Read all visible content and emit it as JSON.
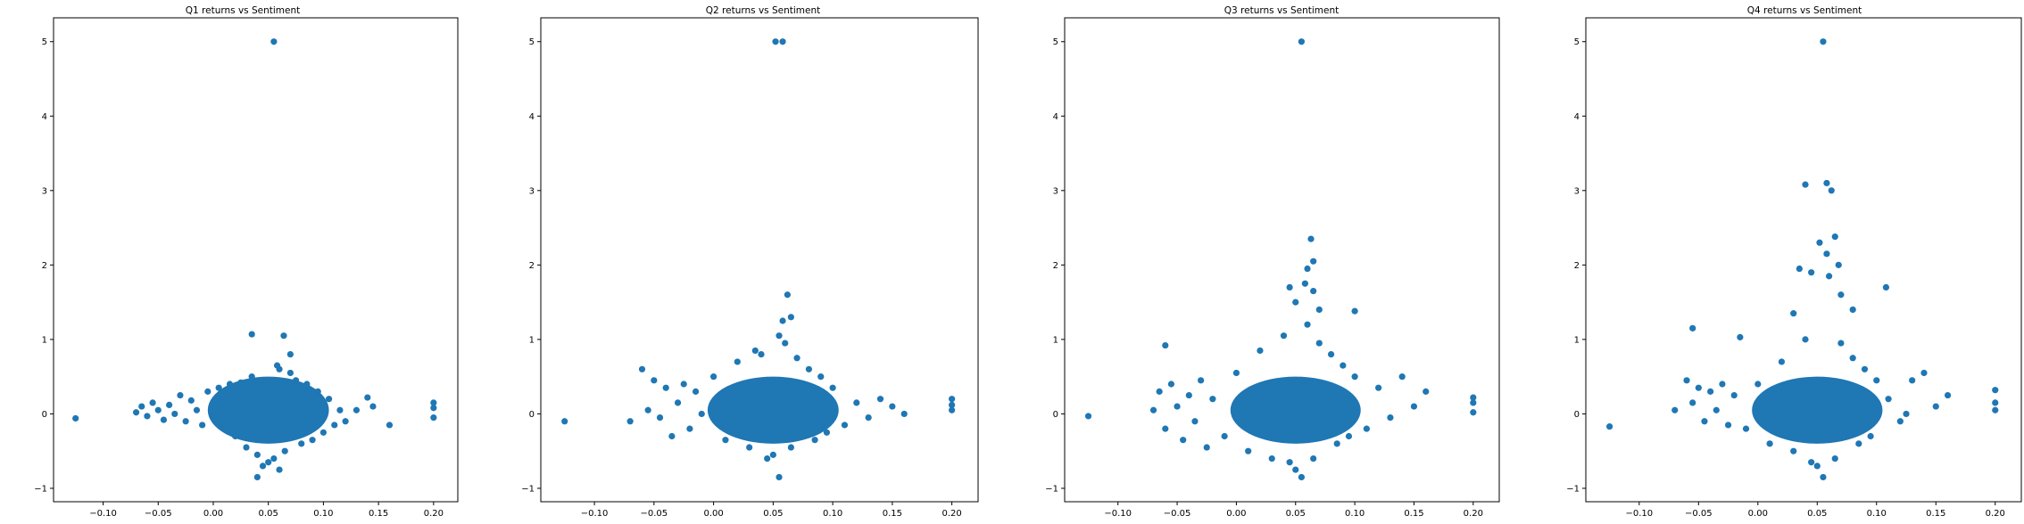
{
  "figure": {
    "background": "#ffffff",
    "point_color": "#1f77b4"
  },
  "chart_data": [
    {
      "type": "scatter",
      "title": "Q1 returns vs Sentiment",
      "xlabel": "",
      "ylabel": "",
      "xlim": [
        -0.145,
        0.222
      ],
      "ylim": [
        -1.18,
        5.32
      ],
      "xticks": [
        -0.1,
        -0.05,
        0.0,
        0.05,
        0.1,
        0.15,
        0.2
      ],
      "xtick_labels": [
        "−0.10",
        "−0.05",
        "0.00",
        "0.05",
        "0.10",
        "0.15",
        "0.20"
      ],
      "yticks": [
        -1,
        0,
        1,
        2,
        3,
        4,
        5
      ],
      "ytick_labels": [
        "−1",
        "0",
        "1",
        "2",
        "3",
        "4",
        "5"
      ],
      "grid": false,
      "series": [
        {
          "values": [
            [
              0.055,
              5.0
            ],
            [
              0.035,
              1.07
            ],
            [
              0.064,
              1.05
            ],
            [
              0.07,
              0.8
            ],
            [
              0.058,
              0.65
            ],
            [
              -0.125,
              -0.06
            ],
            [
              0.2,
              0.15
            ],
            [
              0.2,
              0.08
            ],
            [
              0.2,
              -0.05
            ],
            [
              0.16,
              -0.15
            ],
            [
              0.145,
              0.1
            ],
            [
              0.14,
              0.22
            ],
            [
              0.13,
              0.05
            ],
            [
              0.12,
              -0.1
            ],
            [
              0.115,
              0.05
            ],
            [
              -0.07,
              0.02
            ],
            [
              -0.065,
              0.1
            ],
            [
              -0.06,
              -0.03
            ],
            [
              -0.055,
              0.15
            ],
            [
              -0.05,
              0.05
            ],
            [
              -0.045,
              -0.08
            ],
            [
              -0.04,
              0.12
            ],
            [
              -0.035,
              0.0
            ],
            [
              -0.03,
              0.25
            ],
            [
              -0.025,
              -0.1
            ],
            [
              -0.02,
              0.18
            ],
            [
              -0.015,
              0.05
            ],
            [
              -0.01,
              -0.15
            ],
            [
              -0.005,
              0.3
            ],
            [
              0.0,
              -0.05
            ],
            [
              0.005,
              0.35
            ],
            [
              0.01,
              -0.2
            ],
            [
              0.015,
              0.4
            ],
            [
              0.02,
              -0.3
            ],
            [
              0.025,
              0.42
            ],
            [
              0.03,
              -0.45
            ],
            [
              0.035,
              0.5
            ],
            [
              0.04,
              -0.55
            ],
            [
              0.045,
              -0.7
            ],
            [
              0.05,
              -0.65
            ],
            [
              0.055,
              -0.6
            ],
            [
              0.06,
              -0.75
            ],
            [
              0.065,
              -0.5
            ],
            [
              0.07,
              0.55
            ],
            [
              0.075,
              0.45
            ],
            [
              0.08,
              -0.4
            ],
            [
              0.085,
              0.4
            ],
            [
              0.09,
              -0.35
            ],
            [
              0.095,
              0.3
            ],
            [
              0.1,
              -0.25
            ],
            [
              0.105,
              0.2
            ],
            [
              0.11,
              -0.15
            ],
            [
              0.04,
              -0.85
            ],
            [
              0.06,
              0.6
            ],
            [
              0.03,
              0.38
            ]
          ]
        }
      ]
    },
    {
      "type": "scatter",
      "title": "Q2 returns vs Sentiment",
      "xlabel": "",
      "ylabel": "",
      "xlim": [
        -0.145,
        0.222
      ],
      "ylim": [
        -1.18,
        5.32
      ],
      "xticks": [
        -0.1,
        -0.05,
        0.0,
        0.05,
        0.1,
        0.15,
        0.2
      ],
      "xtick_labels": [
        "−0.10",
        "−0.05",
        "0.00",
        "0.05",
        "0.10",
        "0.15",
        "0.20"
      ],
      "yticks": [
        -1,
        0,
        1,
        2,
        3,
        4,
        5
      ],
      "ytick_labels": [
        "−1",
        "0",
        "1",
        "2",
        "3",
        "4",
        "5"
      ],
      "grid": false,
      "series": [
        {
          "values": [
            [
              0.052,
              5.0
            ],
            [
              0.058,
              5.0
            ],
            [
              0.062,
              1.6
            ],
            [
              0.065,
              1.3
            ],
            [
              0.058,
              1.25
            ],
            [
              0.055,
              1.05
            ],
            [
              0.035,
              0.85
            ],
            [
              0.06,
              0.95
            ],
            [
              -0.125,
              -0.1
            ],
            [
              0.2,
              0.2
            ],
            [
              0.2,
              0.12
            ],
            [
              0.2,
              0.05
            ],
            [
              0.16,
              0.0
            ],
            [
              0.15,
              0.1
            ],
            [
              0.14,
              0.2
            ],
            [
              0.13,
              -0.05
            ],
            [
              0.12,
              0.15
            ],
            [
              0.11,
              -0.15
            ],
            [
              -0.07,
              -0.1
            ],
            [
              -0.06,
              0.6
            ],
            [
              -0.055,
              0.05
            ],
            [
              -0.05,
              0.45
            ],
            [
              -0.045,
              -0.05
            ],
            [
              -0.04,
              0.35
            ],
            [
              -0.035,
              -0.3
            ],
            [
              -0.03,
              0.15
            ],
            [
              -0.025,
              0.4
            ],
            [
              -0.02,
              -0.2
            ],
            [
              -0.015,
              0.3
            ],
            [
              -0.01,
              0.0
            ],
            [
              0.0,
              0.5
            ],
            [
              0.01,
              -0.35
            ],
            [
              0.02,
              0.7
            ],
            [
              0.03,
              -0.45
            ],
            [
              0.04,
              0.8
            ],
            [
              0.045,
              -0.6
            ],
            [
              0.05,
              -0.55
            ],
            [
              0.055,
              -0.85
            ],
            [
              0.065,
              -0.45
            ],
            [
              0.07,
              0.75
            ],
            [
              0.08,
              0.6
            ],
            [
              0.085,
              -0.35
            ],
            [
              0.09,
              0.5
            ],
            [
              0.095,
              -0.25
            ],
            [
              0.1,
              0.35
            ]
          ]
        }
      ]
    },
    {
      "type": "scatter",
      "title": "Q3 returns vs Sentiment",
      "xlabel": "",
      "ylabel": "",
      "xlim": [
        -0.145,
        0.222
      ],
      "ylim": [
        -1.18,
        5.32
      ],
      "xticks": [
        -0.1,
        -0.05,
        0.0,
        0.05,
        0.1,
        0.15,
        0.2
      ],
      "xtick_labels": [
        "−0.10",
        "−0.05",
        "0.00",
        "0.05",
        "0.10",
        "0.15",
        "0.20"
      ],
      "yticks": [
        -1,
        0,
        1,
        2,
        3,
        4,
        5
      ],
      "ytick_labels": [
        "−1",
        "0",
        "1",
        "2",
        "3",
        "4",
        "5"
      ],
      "grid": false,
      "series": [
        {
          "values": [
            [
              0.055,
              5.0
            ],
            [
              0.063,
              2.35
            ],
            [
              0.065,
              2.05
            ],
            [
              0.06,
              1.95
            ],
            [
              0.058,
              1.75
            ],
            [
              0.045,
              1.7
            ],
            [
              0.065,
              1.65
            ],
            [
              0.05,
              1.5
            ],
            [
              0.07,
              1.4
            ],
            [
              0.1,
              1.38
            ],
            [
              0.06,
              1.2
            ],
            [
              -0.06,
              0.92
            ],
            [
              -0.125,
              -0.03
            ],
            [
              0.2,
              0.22
            ],
            [
              0.2,
              0.15
            ],
            [
              0.2,
              0.02
            ],
            [
              0.16,
              0.3
            ],
            [
              0.15,
              0.1
            ],
            [
              0.14,
              0.5
            ],
            [
              0.13,
              -0.05
            ],
            [
              0.12,
              0.35
            ],
            [
              0.11,
              -0.2
            ],
            [
              -0.07,
              0.05
            ],
            [
              -0.065,
              0.3
            ],
            [
              -0.06,
              -0.2
            ],
            [
              -0.055,
              0.4
            ],
            [
              -0.05,
              0.1
            ],
            [
              -0.045,
              -0.35
            ],
            [
              -0.04,
              0.25
            ],
            [
              -0.035,
              -0.1
            ],
            [
              -0.03,
              0.45
            ],
            [
              -0.025,
              -0.45
            ],
            [
              -0.02,
              0.2
            ],
            [
              -0.01,
              -0.3
            ],
            [
              0.0,
              0.55
            ],
            [
              0.01,
              -0.5
            ],
            [
              0.02,
              0.85
            ],
            [
              0.03,
              -0.6
            ],
            [
              0.04,
              1.05
            ],
            [
              0.045,
              -0.65
            ],
            [
              0.05,
              -0.75
            ],
            [
              0.055,
              -0.85
            ],
            [
              0.065,
              -0.6
            ],
            [
              0.07,
              0.95
            ],
            [
              0.08,
              0.8
            ],
            [
              0.085,
              -0.4
            ],
            [
              0.09,
              0.65
            ],
            [
              0.095,
              -0.3
            ],
            [
              0.1,
              0.5
            ]
          ]
        }
      ]
    },
    {
      "type": "scatter",
      "title": "Q4 returns vs Sentiment",
      "xlabel": "",
      "ylabel": "",
      "xlim": [
        -0.145,
        0.222
      ],
      "ylim": [
        -1.18,
        5.32
      ],
      "xticks": [
        -0.1,
        -0.05,
        0.0,
        0.05,
        0.1,
        0.15,
        0.2
      ],
      "xtick_labels": [
        "−0.10",
        "−0.05",
        "0.00",
        "0.05",
        "0.10",
        "0.15",
        "0.20"
      ],
      "yticks": [
        -1,
        0,
        1,
        2,
        3,
        4,
        5
      ],
      "ytick_labels": [
        "−1",
        "0",
        "1",
        "2",
        "3",
        "4",
        "5"
      ],
      "grid": false,
      "series": [
        {
          "values": [
            [
              0.055,
              5.0
            ],
            [
              0.04,
              3.08
            ],
            [
              0.058,
              3.1
            ],
            [
              0.062,
              3.0
            ],
            [
              0.065,
              2.38
            ],
            [
              0.052,
              2.3
            ],
            [
              0.058,
              2.15
            ],
            [
              0.068,
              2.0
            ],
            [
              0.035,
              1.95
            ],
            [
              0.045,
              1.9
            ],
            [
              0.06,
              1.85
            ],
            [
              0.108,
              1.7
            ],
            [
              0.07,
              1.6
            ],
            [
              0.03,
              1.35
            ],
            [
              0.08,
              1.4
            ],
            [
              -0.055,
              1.15
            ],
            [
              -0.015,
              1.03
            ],
            [
              -0.125,
              -0.17
            ],
            [
              0.2,
              0.32
            ],
            [
              0.2,
              0.15
            ],
            [
              0.2,
              0.05
            ],
            [
              0.16,
              0.25
            ],
            [
              0.15,
              0.1
            ],
            [
              0.14,
              0.55
            ],
            [
              0.13,
              0.45
            ],
            [
              0.125,
              0.0
            ],
            [
              0.12,
              -0.1
            ],
            [
              0.11,
              0.2
            ],
            [
              -0.07,
              0.05
            ],
            [
              -0.06,
              0.45
            ],
            [
              -0.055,
              0.15
            ],
            [
              -0.05,
              0.35
            ],
            [
              -0.045,
              -0.1
            ],
            [
              -0.04,
              0.3
            ],
            [
              -0.035,
              0.05
            ],
            [
              -0.03,
              0.4
            ],
            [
              -0.025,
              -0.15
            ],
            [
              -0.02,
              0.25
            ],
            [
              -0.01,
              -0.2
            ],
            [
              0.0,
              0.4
            ],
            [
              0.01,
              -0.4
            ],
            [
              0.02,
              0.7
            ],
            [
              0.03,
              -0.5
            ],
            [
              0.04,
              1.0
            ],
            [
              0.045,
              -0.65
            ],
            [
              0.05,
              -0.7
            ],
            [
              0.055,
              -0.85
            ],
            [
              0.065,
              -0.6
            ],
            [
              0.07,
              0.95
            ],
            [
              0.08,
              0.75
            ],
            [
              0.085,
              -0.4
            ],
            [
              0.09,
              0.6
            ],
            [
              0.095,
              -0.3
            ],
            [
              0.1,
              0.45
            ]
          ]
        }
      ]
    }
  ]
}
